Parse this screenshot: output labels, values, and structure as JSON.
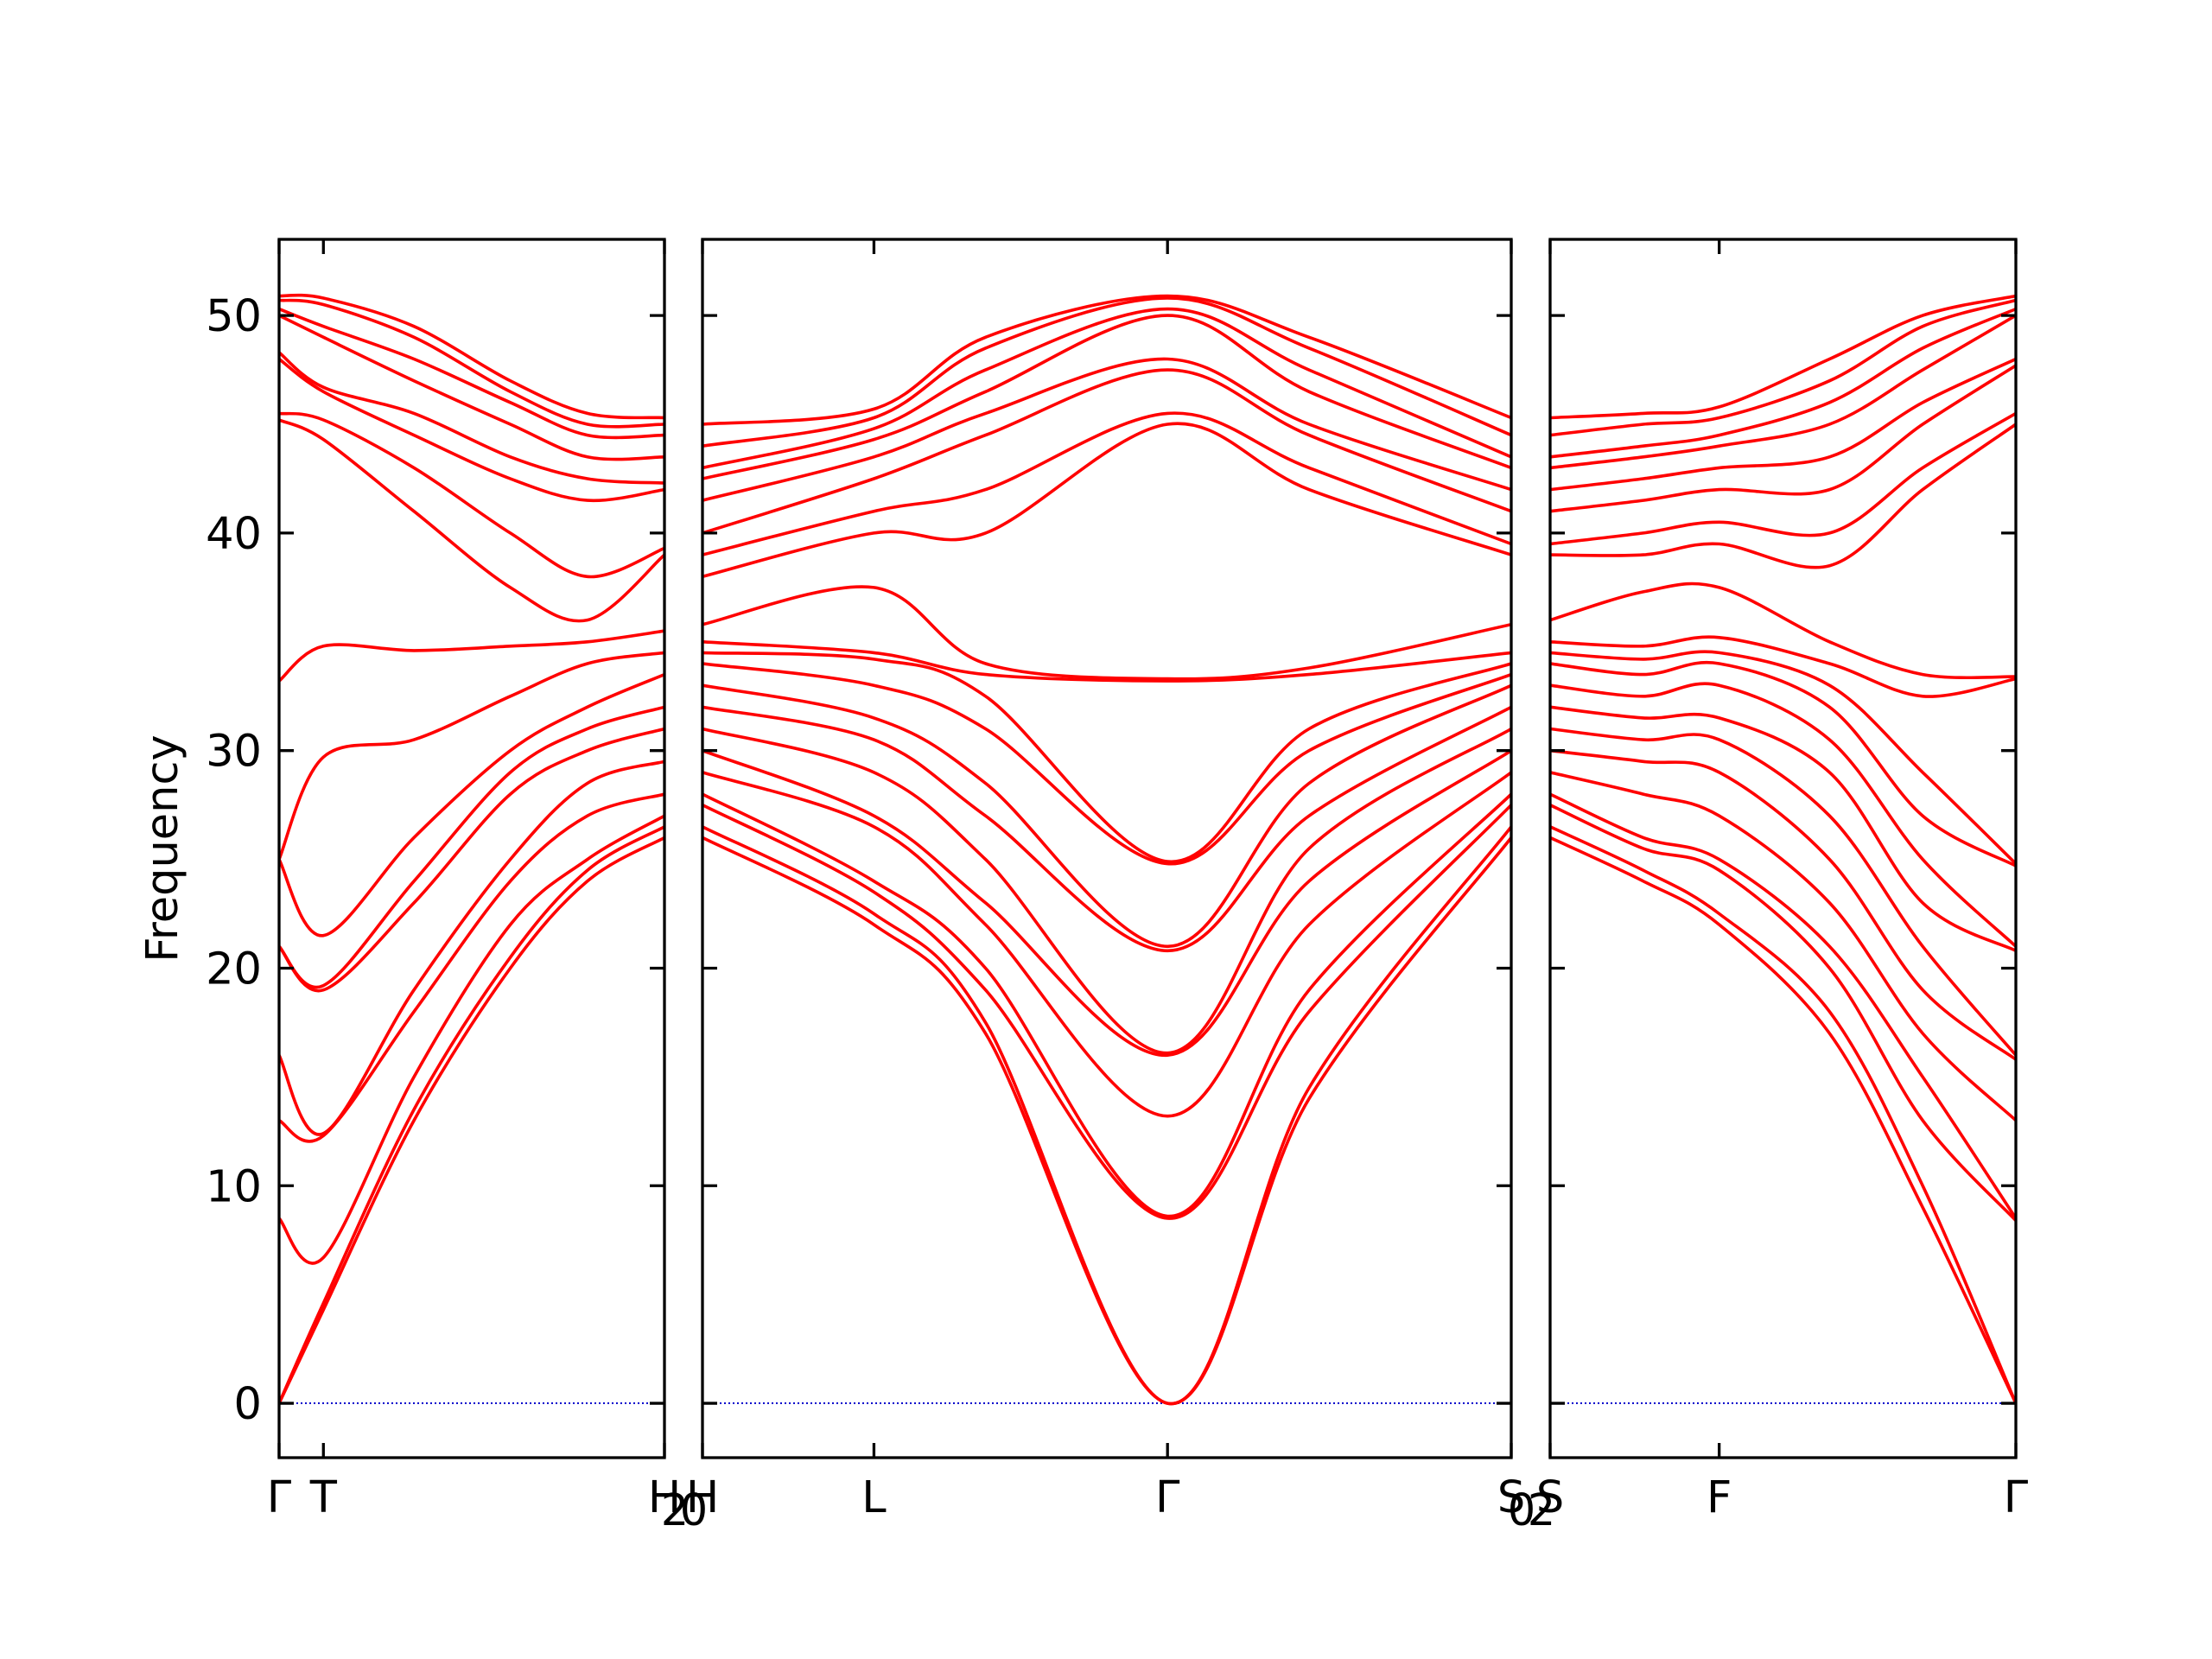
{
  "chart_data": {
    "type": "line",
    "title": "",
    "ylabel": "Frequency",
    "ylim": [
      -2.5,
      53.5
    ],
    "yticks": [
      0,
      10,
      20,
      30,
      40,
      50
    ],
    "grid": false,
    "legend": "none",
    "colors": {
      "bands": "#ff0000",
      "zero_line": "#0000cc",
      "axes": "#000000"
    },
    "panels": [
      {
        "xlim": [
          0,
          1
        ],
        "xticks": [
          {
            "x": 0.0,
            "label": "Γ"
          },
          {
            "x": 0.115,
            "label": "T"
          },
          {
            "x": 1.0,
            "label": "H"
          }
        ],
        "extra_labels": [
          {
            "x": 1.0,
            "label": "2",
            "sub": true
          }
        ],
        "x": [
          0,
          0.115,
          0.35,
          0.6,
          0.8,
          1.0
        ],
        "series": [
          {
            "values": [
              0,
              4.3,
              13,
              20,
              24,
              26
            ]
          },
          {
            "values": [
              0,
              4.6,
              13.5,
              20.5,
              24.5,
              26.5
            ]
          },
          {
            "values": [
              8.5,
              6.7,
              15,
              22,
              25,
              27
            ]
          },
          {
            "values": [
              13,
              12.3,
              18,
              24,
              27,
              28
            ]
          },
          {
            "values": [
              16,
              12.4,
              19,
              25,
              28.5,
              29.5
            ]
          },
          {
            "values": [
              21,
              19,
              23,
              28,
              30,
              31
            ]
          },
          {
            "values": [
              21,
              19.2,
              24,
              29,
              31,
              32
            ]
          },
          {
            "values": [
              25,
              21.5,
              26,
              30,
              32,
              33.5
            ]
          },
          {
            "values": [
              25,
              29.7,
              30.5,
              32.5,
              34,
              34.5
            ]
          },
          {
            "values": [
              33.2,
              34.8,
              34.6,
              34.8,
              35,
              35.5
            ]
          },
          {
            "values": [
              45.2,
              44.3,
              41,
              37.5,
              36,
              39
            ]
          },
          {
            "values": [
              45.5,
              45.2,
              43,
              40,
              38,
              39.3
            ]
          },
          {
            "values": [
              48,
              46.5,
              44.5,
              42.5,
              41.5,
              42
            ]
          },
          {
            "values": [
              48.3,
              46.7,
              45.5,
              43.5,
              42.5,
              42.3
            ]
          },
          {
            "values": [
              50,
              49,
              47,
              45,
              43.5,
              43.5
            ]
          },
          {
            "values": [
              50.3,
              49.5,
              48,
              46,
              44.5,
              44.5
            ]
          },
          {
            "values": [
              50.7,
              50.5,
              49,
              46.5,
              45,
              45
            ]
          },
          {
            "values": [
              50.9,
              50.8,
              49.5,
              47,
              45.5,
              45.3
            ]
          }
        ]
      },
      {
        "xlim": [
          0,
          1
        ],
        "xticks": [
          {
            "x": 0.0,
            "label": "H"
          },
          {
            "x": 0.212,
            "label": "L"
          },
          {
            "x": 0.575,
            "label": "Γ"
          },
          {
            "x": 1.0,
            "label": "S"
          }
        ],
        "extra_labels": [
          {
            "x": 0.0,
            "label": "0",
            "sub": true
          },
          {
            "x": 1.0,
            "label": "0",
            "sub": true
          }
        ],
        "x": [
          0,
          0.212,
          0.35,
          0.575,
          0.75,
          1.0
        ],
        "series": [
          {
            "values": [
              26,
              22,
              17,
              0,
              14,
              26
            ]
          },
          {
            "values": [
              26.5,
              22.5,
              17.5,
              0,
              14.5,
              26.5
            ]
          },
          {
            "values": [
              27.5,
              23.5,
              19,
              8.5,
              18,
              27.5
            ]
          },
          {
            "values": [
              28,
              24,
              20,
              8.6,
              19,
              28
            ]
          },
          {
            "values": [
              29,
              26.5,
              22,
              13.2,
              22,
              29
            ]
          },
          {
            "values": [
              30,
              27,
              23,
              16,
              24,
              30
            ]
          },
          {
            "values": [
              31,
              29,
              25,
              16.1,
              25.5,
              31
            ]
          },
          {
            "values": [
              32,
              30.5,
              27,
              20.8,
              27,
              32
            ]
          },
          {
            "values": [
              33,
              31.5,
              28.5,
              21,
              28.5,
              33
            ]
          },
          {
            "values": [
              34,
              33,
              31,
              24.8,
              30,
              33.5
            ]
          },
          {
            "values": [
              34.5,
              34.2,
              32.5,
              24.9,
              31,
              34
            ]
          },
          {
            "values": [
              35,
              34.5,
              33.5,
              33.2,
              33.5,
              34.5
            ]
          },
          {
            "values": [
              35.8,
              37.5,
              34,
              33.3,
              33.8,
              35.8
            ]
          },
          {
            "values": [
              38,
              40,
              40,
              45,
              42,
              39
            ]
          },
          {
            "values": [
              39,
              41,
              42,
              45.5,
              43,
              39.5
            ]
          },
          {
            "values": [
              40,
              42.5,
              44.5,
              47.5,
              44.5,
              41
            ]
          },
          {
            "values": [
              41.5,
              43.5,
              45.5,
              48,
              45,
              42
            ]
          },
          {
            "values": [
              42.5,
              44.3,
              46.5,
              50,
              46.5,
              43
            ]
          },
          {
            "values": [
              43,
              44.8,
              47.5,
              50.3,
              47.5,
              43.5
            ]
          },
          {
            "values": [
              44,
              45.3,
              48.5,
              50.8,
              48.5,
              44.5
            ]
          },
          {
            "values": [
              45,
              45.7,
              49,
              50.9,
              49,
              45.3
            ]
          }
        ]
      },
      {
        "xlim": [
          0,
          1
        ],
        "xticks": [
          {
            "x": 0.0,
            "label": "S"
          },
          {
            "x": 0.363,
            "label": "F"
          },
          {
            "x": 1.0,
            "label": "Γ"
          }
        ],
        "extra_labels": [
          {
            "x": 0.0,
            "label": "2",
            "sub": true
          }
        ],
        "x": [
          0,
          0.2,
          0.363,
          0.6,
          0.8,
          1.0
        ],
        "series": [
          {
            "values": [
              26,
              24,
              22,
              17,
              9,
              0
            ]
          },
          {
            "values": [
              26.5,
              24.5,
              22.5,
              18,
              10,
              0
            ]
          },
          {
            "values": [
              27.5,
              25.5,
              24.5,
              20,
              13,
              8.4
            ]
          },
          {
            "values": [
              28,
              26,
              25,
              21,
              15,
              8.5
            ]
          },
          {
            "values": [
              29,
              28,
              27,
              23,
              17,
              13
            ]
          },
          {
            "values": [
              30,
              29.5,
              29,
              25,
              19,
              15.8
            ]
          },
          {
            "values": [
              31,
              30.5,
              30.5,
              27,
              21,
              16
            ]
          },
          {
            "values": [
              32,
              31.5,
              31.5,
              29,
              23,
              20.8
            ]
          },
          {
            "values": [
              33,
              32.5,
              33,
              30.5,
              25,
              21
            ]
          },
          {
            "values": [
              34,
              33.5,
              34,
              32,
              27,
              24.7
            ]
          },
          {
            "values": [
              34.5,
              34.2,
              34.5,
              33,
              29,
              24.8
            ]
          },
          {
            "values": [
              35,
              34.8,
              35.2,
              34,
              32.5,
              33.3
            ]
          },
          {
            "values": [
              36,
              37.3,
              37.5,
              35,
              33.5,
              33.4
            ]
          },
          {
            "values": [
              39,
              39,
              39.5,
              38.5,
              42,
              45
            ]
          },
          {
            "values": [
              39.5,
              40,
              40.5,
              40,
              43,
              45.5
            ]
          },
          {
            "values": [
              41,
              41.5,
              42,
              42,
              45,
              47.7
            ]
          },
          {
            "values": [
              42,
              42.5,
              43,
              43.5,
              46,
              48
            ]
          },
          {
            "values": [
              43,
              43.5,
              44,
              45,
              47.5,
              50
            ]
          },
          {
            "values": [
              43.5,
              44,
              44.5,
              46,
              48.5,
              50.3
            ]
          },
          {
            "values": [
              44.5,
              45,
              45.3,
              47,
              49.5,
              50.7
            ]
          },
          {
            "values": [
              45.3,
              45.5,
              45.8,
              48,
              50,
              50.9
            ]
          }
        ]
      }
    ]
  }
}
